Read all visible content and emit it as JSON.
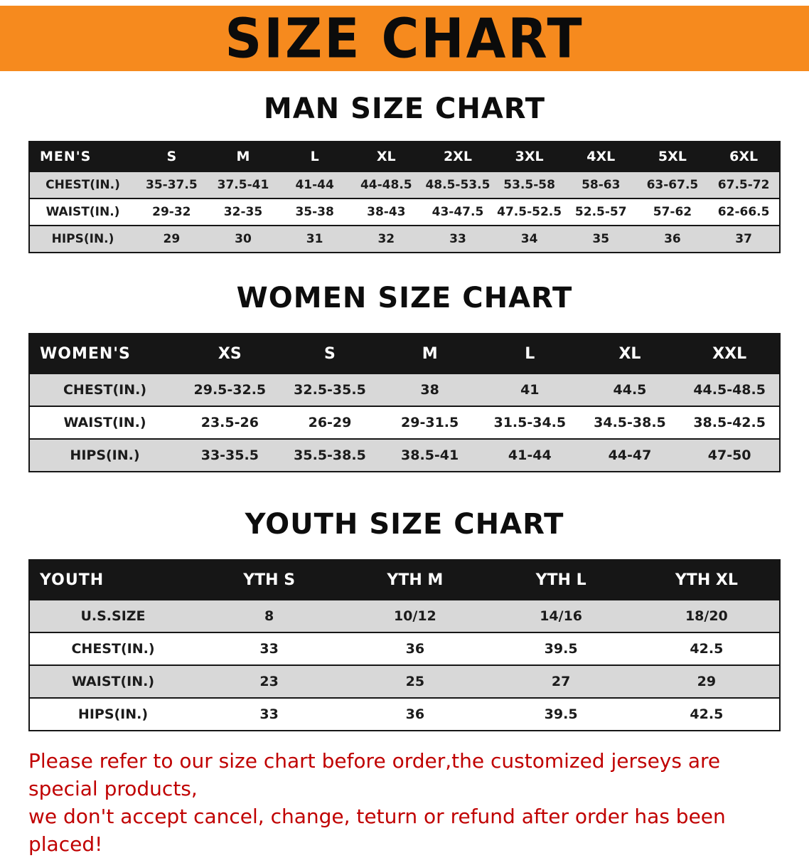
{
  "banner": {
    "title": "SIZE CHART"
  },
  "colors": {
    "banner_bg": "#f68a1e",
    "header_bg": "#161616",
    "shade": "#d8d8d8",
    "note": "#c00000"
  },
  "chart_data": [
    {
      "type": "table",
      "title": "MAN SIZE CHART",
      "header_label": "MEN'S",
      "columns": [
        "S",
        "M",
        "L",
        "XL",
        "2XL",
        "3XL",
        "4XL",
        "5XL",
        "6XL"
      ],
      "rows": [
        {
          "label": "CHEST(IN.)",
          "values": [
            "35-37.5",
            "37.5-41",
            "41-44",
            "44-48.5",
            "48.5-53.5",
            "53.5-58",
            "58-63",
            "63-67.5",
            "67.5-72"
          ]
        },
        {
          "label": "WAIST(IN.)",
          "values": [
            "29-32",
            "32-35",
            "35-38",
            "38-43",
            "43-47.5",
            "47.5-52.5",
            "52.5-57",
            "57-62",
            "62-66.5"
          ]
        },
        {
          "label": "HIPS(IN.)",
          "values": [
            "29",
            "30",
            "31",
            "32",
            "33",
            "34",
            "35",
            "36",
            "37"
          ]
        }
      ]
    },
    {
      "type": "table",
      "title": "WOMEN SIZE CHART",
      "header_label": "WOMEN'S",
      "columns": [
        "XS",
        "S",
        "M",
        "L",
        "XL",
        "XXL"
      ],
      "rows": [
        {
          "label": "CHEST(IN.)",
          "values": [
            "29.5-32.5",
            "32.5-35.5",
            "38",
            "41",
            "44.5",
            "44.5-48.5"
          ]
        },
        {
          "label": "WAIST(IN.)",
          "values": [
            "23.5-26",
            "26-29",
            "29-31.5",
            "31.5-34.5",
            "34.5-38.5",
            "38.5-42.5"
          ]
        },
        {
          "label": "HIPS(IN.)",
          "values": [
            "33-35.5",
            "35.5-38.5",
            "38.5-41",
            "41-44",
            "44-47",
            "47-50"
          ]
        }
      ]
    },
    {
      "type": "table",
      "title": "YOUTH SIZE CHART",
      "header_label": "YOUTH",
      "columns": [
        "YTH S",
        "YTH M",
        "YTH L",
        "YTH XL"
      ],
      "rows": [
        {
          "label": "U.S.SIZE",
          "values": [
            "8",
            "10/12",
            "14/16",
            "18/20"
          ]
        },
        {
          "label": "CHEST(IN.)",
          "values": [
            "33",
            "36",
            "39.5",
            "42.5"
          ]
        },
        {
          "label": "WAIST(IN.)",
          "values": [
            "23",
            "25",
            "27",
            "29"
          ]
        },
        {
          "label": "HIPS(IN.)",
          "values": [
            "33",
            "36",
            "39.5",
            "42.5"
          ]
        }
      ]
    }
  ],
  "note": {
    "lines": [
      "Please refer to our size chart before order,the customized jerseys are special products,",
      "we don't accept cancel, change, teturn or refund after order has been placed!"
    ]
  }
}
